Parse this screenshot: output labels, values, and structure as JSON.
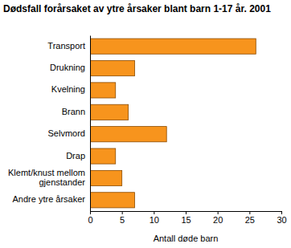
{
  "chart_data": {
    "type": "bar",
    "orientation": "horizontal",
    "title": "Dødsfall forårsaket av ytre årsaker blant barn 1-17 år. 2001",
    "x_label": "Antall døde barn",
    "categories": [
      "Transport",
      "Drukning",
      "Kvelning",
      "Brann",
      "Selvmord",
      "Drap",
      "Klemt/knust mellom gjenstander",
      "Andre ytre årsaker"
    ],
    "values": [
      26,
      7,
      4,
      6,
      12,
      4,
      5,
      7
    ],
    "color": "#f7941d",
    "xlim": [
      0,
      30
    ],
    "xticks": [
      0,
      5,
      10,
      15,
      20,
      25,
      30
    ],
    "grid": false
  }
}
